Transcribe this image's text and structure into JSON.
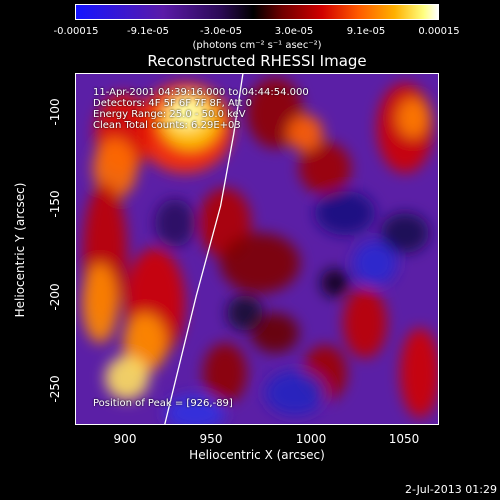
{
  "colorbar": {
    "ticks": [
      "-0.00015",
      "-9.1e-05",
      "-3.0e-05",
      "3.0e-05",
      "9.1e-05",
      "0.00015"
    ],
    "units": "(photons cm⁻² s⁻¹ asec⁻²)"
  },
  "chart_data": {
    "type": "heatmap",
    "title": "Reconstructed RHESSI Image",
    "xlabel": "Heliocentric X (arcsec)",
    "ylabel": "Heliocentric Y (arcsec)",
    "xlim": [
      870,
      1065
    ],
    "ylim": [
      -272,
      -76
    ],
    "xticks": [
      "900",
      "950",
      "1000",
      "1050"
    ],
    "yticks": [
      "-100",
      "-150",
      "-200",
      "-250"
    ],
    "colorscale": [
      "#1414ff",
      "#5a1aa8",
      "#000000",
      "#d00000",
      "#ff5a00",
      "#ffb000",
      "#ffffff"
    ],
    "annotations": [
      "11-Apr-2001 04:39:16.000 to 04:44:54.000",
      "Detectors: 4F 5F 6F 7F 8F, Att 0",
      "Energy Range: 25.0 - 50.0 keV",
      "Clean     Total counts: 6.29E+03",
      "Position of Peak = [926,-89]"
    ],
    "peak_position": [
      926,
      -89
    ],
    "limb_curve": [
      [
        918,
        -272
      ],
      [
        935,
        -200
      ],
      [
        948,
        -150
      ],
      [
        955,
        -110
      ],
      [
        960,
        -76
      ]
    ]
  },
  "footer": {
    "timestamp": "2-Jul-2013 01:29"
  }
}
